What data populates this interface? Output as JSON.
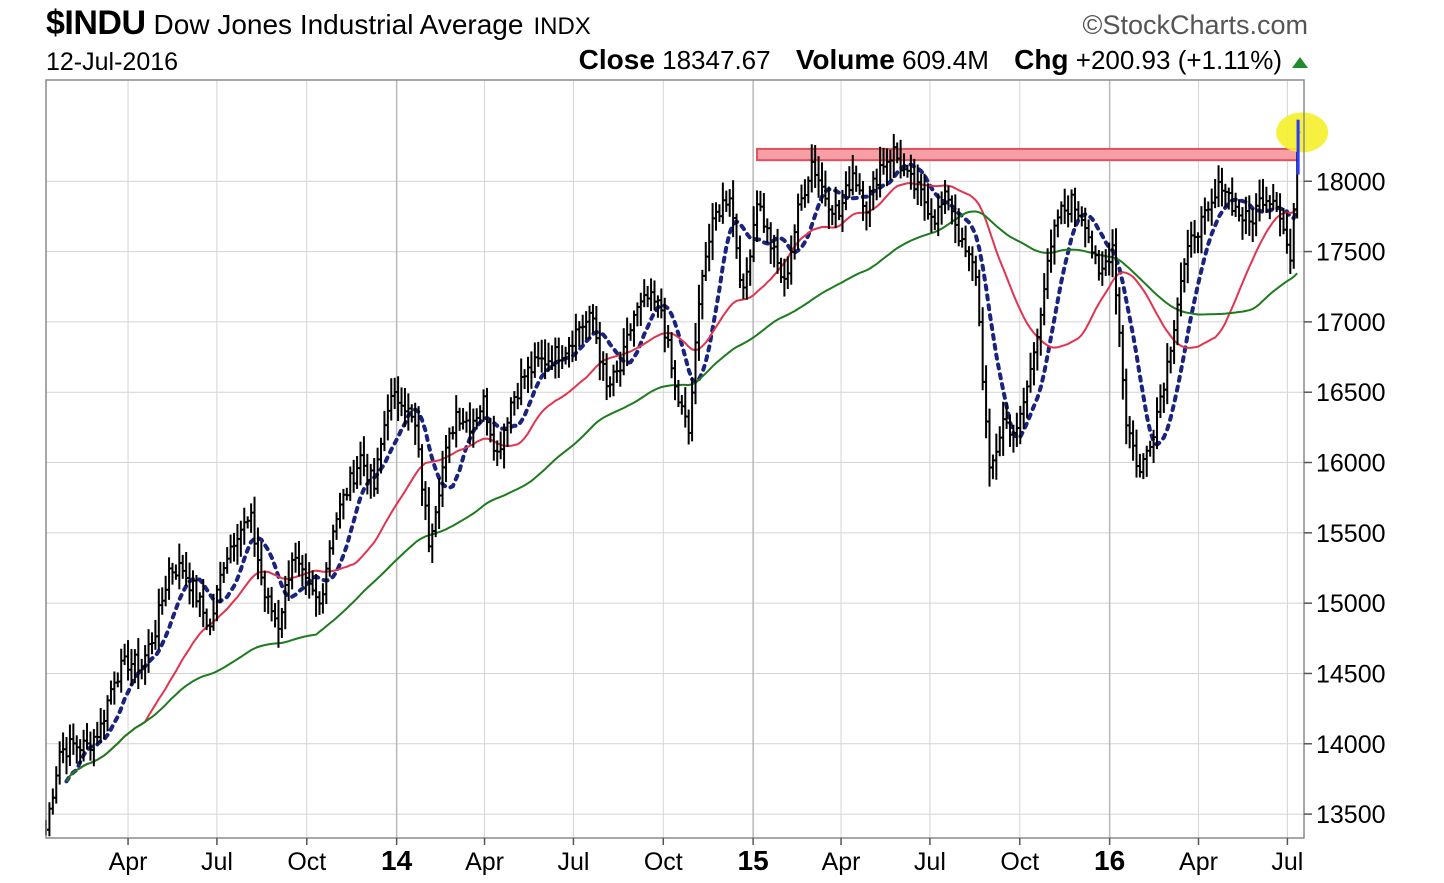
{
  "header": {
    "symbol": "$INDU",
    "name": "Dow Jones Industrial Average",
    "exchange": "INDX",
    "brand": "©StockCharts.com",
    "date": "12-Jul-2016",
    "close_label": "Close",
    "close_value": "18347.67",
    "volume_label": "Volume",
    "volume_value": "609.4M",
    "chg_label": "Chg",
    "chg_value": "+200.93 (+1.11%)"
  },
  "chart_data": {
    "type": "line",
    "y_axis": {
      "ticks": [
        13500,
        14000,
        14500,
        15000,
        15500,
        16000,
        16500,
        17000,
        17500,
        18000
      ],
      "range": [
        13330,
        18720
      ],
      "side": "right"
    },
    "x_axis": {
      "ticks": [
        {
          "label": "Apr",
          "date": "2013-04-01",
          "bold": false
        },
        {
          "label": "Jul",
          "date": "2013-07-01",
          "bold": false
        },
        {
          "label": "Oct",
          "date": "2013-10-01",
          "bold": false
        },
        {
          "label": "14",
          "date": "2014-01-01",
          "bold": true
        },
        {
          "label": "Apr",
          "date": "2014-04-01",
          "bold": false
        },
        {
          "label": "Jul",
          "date": "2014-07-01",
          "bold": false
        },
        {
          "label": "Oct",
          "date": "2014-10-01",
          "bold": false
        },
        {
          "label": "15",
          "date": "2015-01-01",
          "bold": true
        },
        {
          "label": "Apr",
          "date": "2015-04-01",
          "bold": false
        },
        {
          "label": "Jul",
          "date": "2015-07-01",
          "bold": false
        },
        {
          "label": "Oct",
          "date": "2015-10-01",
          "bold": false
        },
        {
          "label": "16",
          "date": "2016-01-01",
          "bold": true
        },
        {
          "label": "Apr",
          "date": "2016-04-01",
          "bold": false
        },
        {
          "label": "Jul",
          "date": "2016-07-01",
          "bold": false
        }
      ],
      "range": [
        "2013-01-07",
        "2016-07-18"
      ]
    },
    "grid": true,
    "price_series": {
      "style": "hlc-bars",
      "color": "#000000",
      "points": [
        [
          "2013-01-07",
          13390
        ],
        [
          "2013-01-21",
          13950
        ],
        [
          "2013-02-04",
          13990
        ],
        [
          "2013-02-18",
          13980
        ],
        [
          "2013-03-04",
          14120
        ],
        [
          "2013-03-18",
          14480
        ],
        [
          "2013-04-01",
          14580
        ],
        [
          "2013-04-15",
          14560
        ],
        [
          "2013-04-29",
          14810
        ],
        [
          "2013-05-13",
          15240
        ],
        [
          "2013-05-27",
          15250
        ],
        [
          "2013-06-10",
          15050
        ],
        [
          "2013-06-24",
          14820
        ],
        [
          "2013-07-08",
          15300
        ],
        [
          "2013-07-22",
          15520
        ],
        [
          "2013-08-05",
          15580
        ],
        [
          "2013-08-19",
          15050
        ],
        [
          "2013-09-02",
          14850
        ],
        [
          "2013-09-16",
          15340
        ],
        [
          "2013-09-30",
          15120
        ],
        [
          "2013-10-14",
          14990
        ],
        [
          "2013-10-28",
          15550
        ],
        [
          "2013-11-11",
          15800
        ],
        [
          "2013-11-25",
          16040
        ],
        [
          "2013-12-09",
          15820
        ],
        [
          "2013-12-23",
          16420
        ],
        [
          "2014-01-06",
          16470
        ],
        [
          "2014-01-20",
          16240
        ],
        [
          "2014-02-03",
          15450
        ],
        [
          "2014-02-17",
          15960
        ],
        [
          "2014-03-03",
          16360
        ],
        [
          "2014-03-17",
          16280
        ],
        [
          "2014-03-31",
          16430
        ],
        [
          "2014-04-14",
          16060
        ],
        [
          "2014-04-28",
          16430
        ],
        [
          "2014-05-12",
          16620
        ],
        [
          "2014-05-26",
          16710
        ],
        [
          "2014-06-09",
          16750
        ],
        [
          "2014-06-23",
          16820
        ],
        [
          "2014-07-07",
          16970
        ],
        [
          "2014-07-21",
          17020
        ],
        [
          "2014-08-04",
          16520
        ],
        [
          "2014-08-18",
          16660
        ],
        [
          "2014-09-01",
          17050
        ],
        [
          "2014-09-15",
          17160
        ],
        [
          "2014-09-29",
          17090
        ],
        [
          "2014-10-13",
          16520
        ],
        [
          "2014-10-27",
          16210
        ],
        [
          "2014-11-10",
          17390
        ],
        [
          "2014-11-24",
          17760
        ],
        [
          "2014-12-08",
          17920
        ],
        [
          "2014-12-22",
          17180
        ],
        [
          "2015-01-05",
          17880
        ],
        [
          "2015-01-19",
          17550
        ],
        [
          "2015-02-02",
          17260
        ],
        [
          "2015-02-16",
          17780
        ],
        [
          "2015-03-02",
          18140
        ],
        [
          "2015-03-16",
          17900
        ],
        [
          "2015-03-30",
          17760
        ],
        [
          "2015-04-13",
          18070
        ],
        [
          "2015-04-27",
          17830
        ],
        [
          "2015-05-11",
          18110
        ],
        [
          "2015-05-25",
          18210
        ],
        [
          "2015-06-08",
          18020
        ],
        [
          "2015-06-22",
          17900
        ],
        [
          "2015-07-06",
          17750
        ],
        [
          "2015-07-20",
          17900
        ],
        [
          "2015-08-03",
          17530
        ],
        [
          "2015-08-17",
          17350
        ],
        [
          "2015-08-31",
          15900
        ],
        [
          "2015-09-14",
          16300
        ],
        [
          "2015-09-28",
          16200
        ],
        [
          "2015-10-12",
          16650
        ],
        [
          "2015-10-26",
          17250
        ],
        [
          "2015-11-09",
          17750
        ],
        [
          "2015-11-23",
          17850
        ],
        [
          "2015-12-07",
          17730
        ],
        [
          "2015-12-21",
          17300
        ],
        [
          "2016-01-04",
          17550
        ],
        [
          "2016-01-18",
          16300
        ],
        [
          "2016-02-01",
          15920
        ],
        [
          "2016-02-15",
          16250
        ],
        [
          "2016-02-29",
          16700
        ],
        [
          "2016-03-14",
          17300
        ],
        [
          "2016-03-28",
          17650
        ],
        [
          "2016-04-11",
          17750
        ],
        [
          "2016-04-25",
          18000
        ],
        [
          "2016-05-09",
          17800
        ],
        [
          "2016-05-23",
          17700
        ],
        [
          "2016-06-06",
          17900
        ],
        [
          "2016-06-20",
          17880
        ],
        [
          "2016-07-05",
          17400
        ],
        [
          "2016-07-12",
          18347.67
        ]
      ]
    },
    "overlays": [
      {
        "style": "dotted",
        "color": "#1a237e",
        "smooth": 5
      },
      {
        "style": "solid",
        "color": "#e0344f",
        "smooth": 15
      },
      {
        "style": "solid",
        "color": "#1e7b1e",
        "smooth": 40
      }
    ],
    "resistance_band": {
      "from": "2015-01-05",
      "to": "2016-07-12",
      "low": 18150,
      "high": 18230,
      "fill": "#f6a0a6",
      "stroke": "#e05060"
    },
    "highlight": {
      "date": "2016-07-12",
      "value": 18347.67,
      "color": "#f5f02a"
    }
  }
}
